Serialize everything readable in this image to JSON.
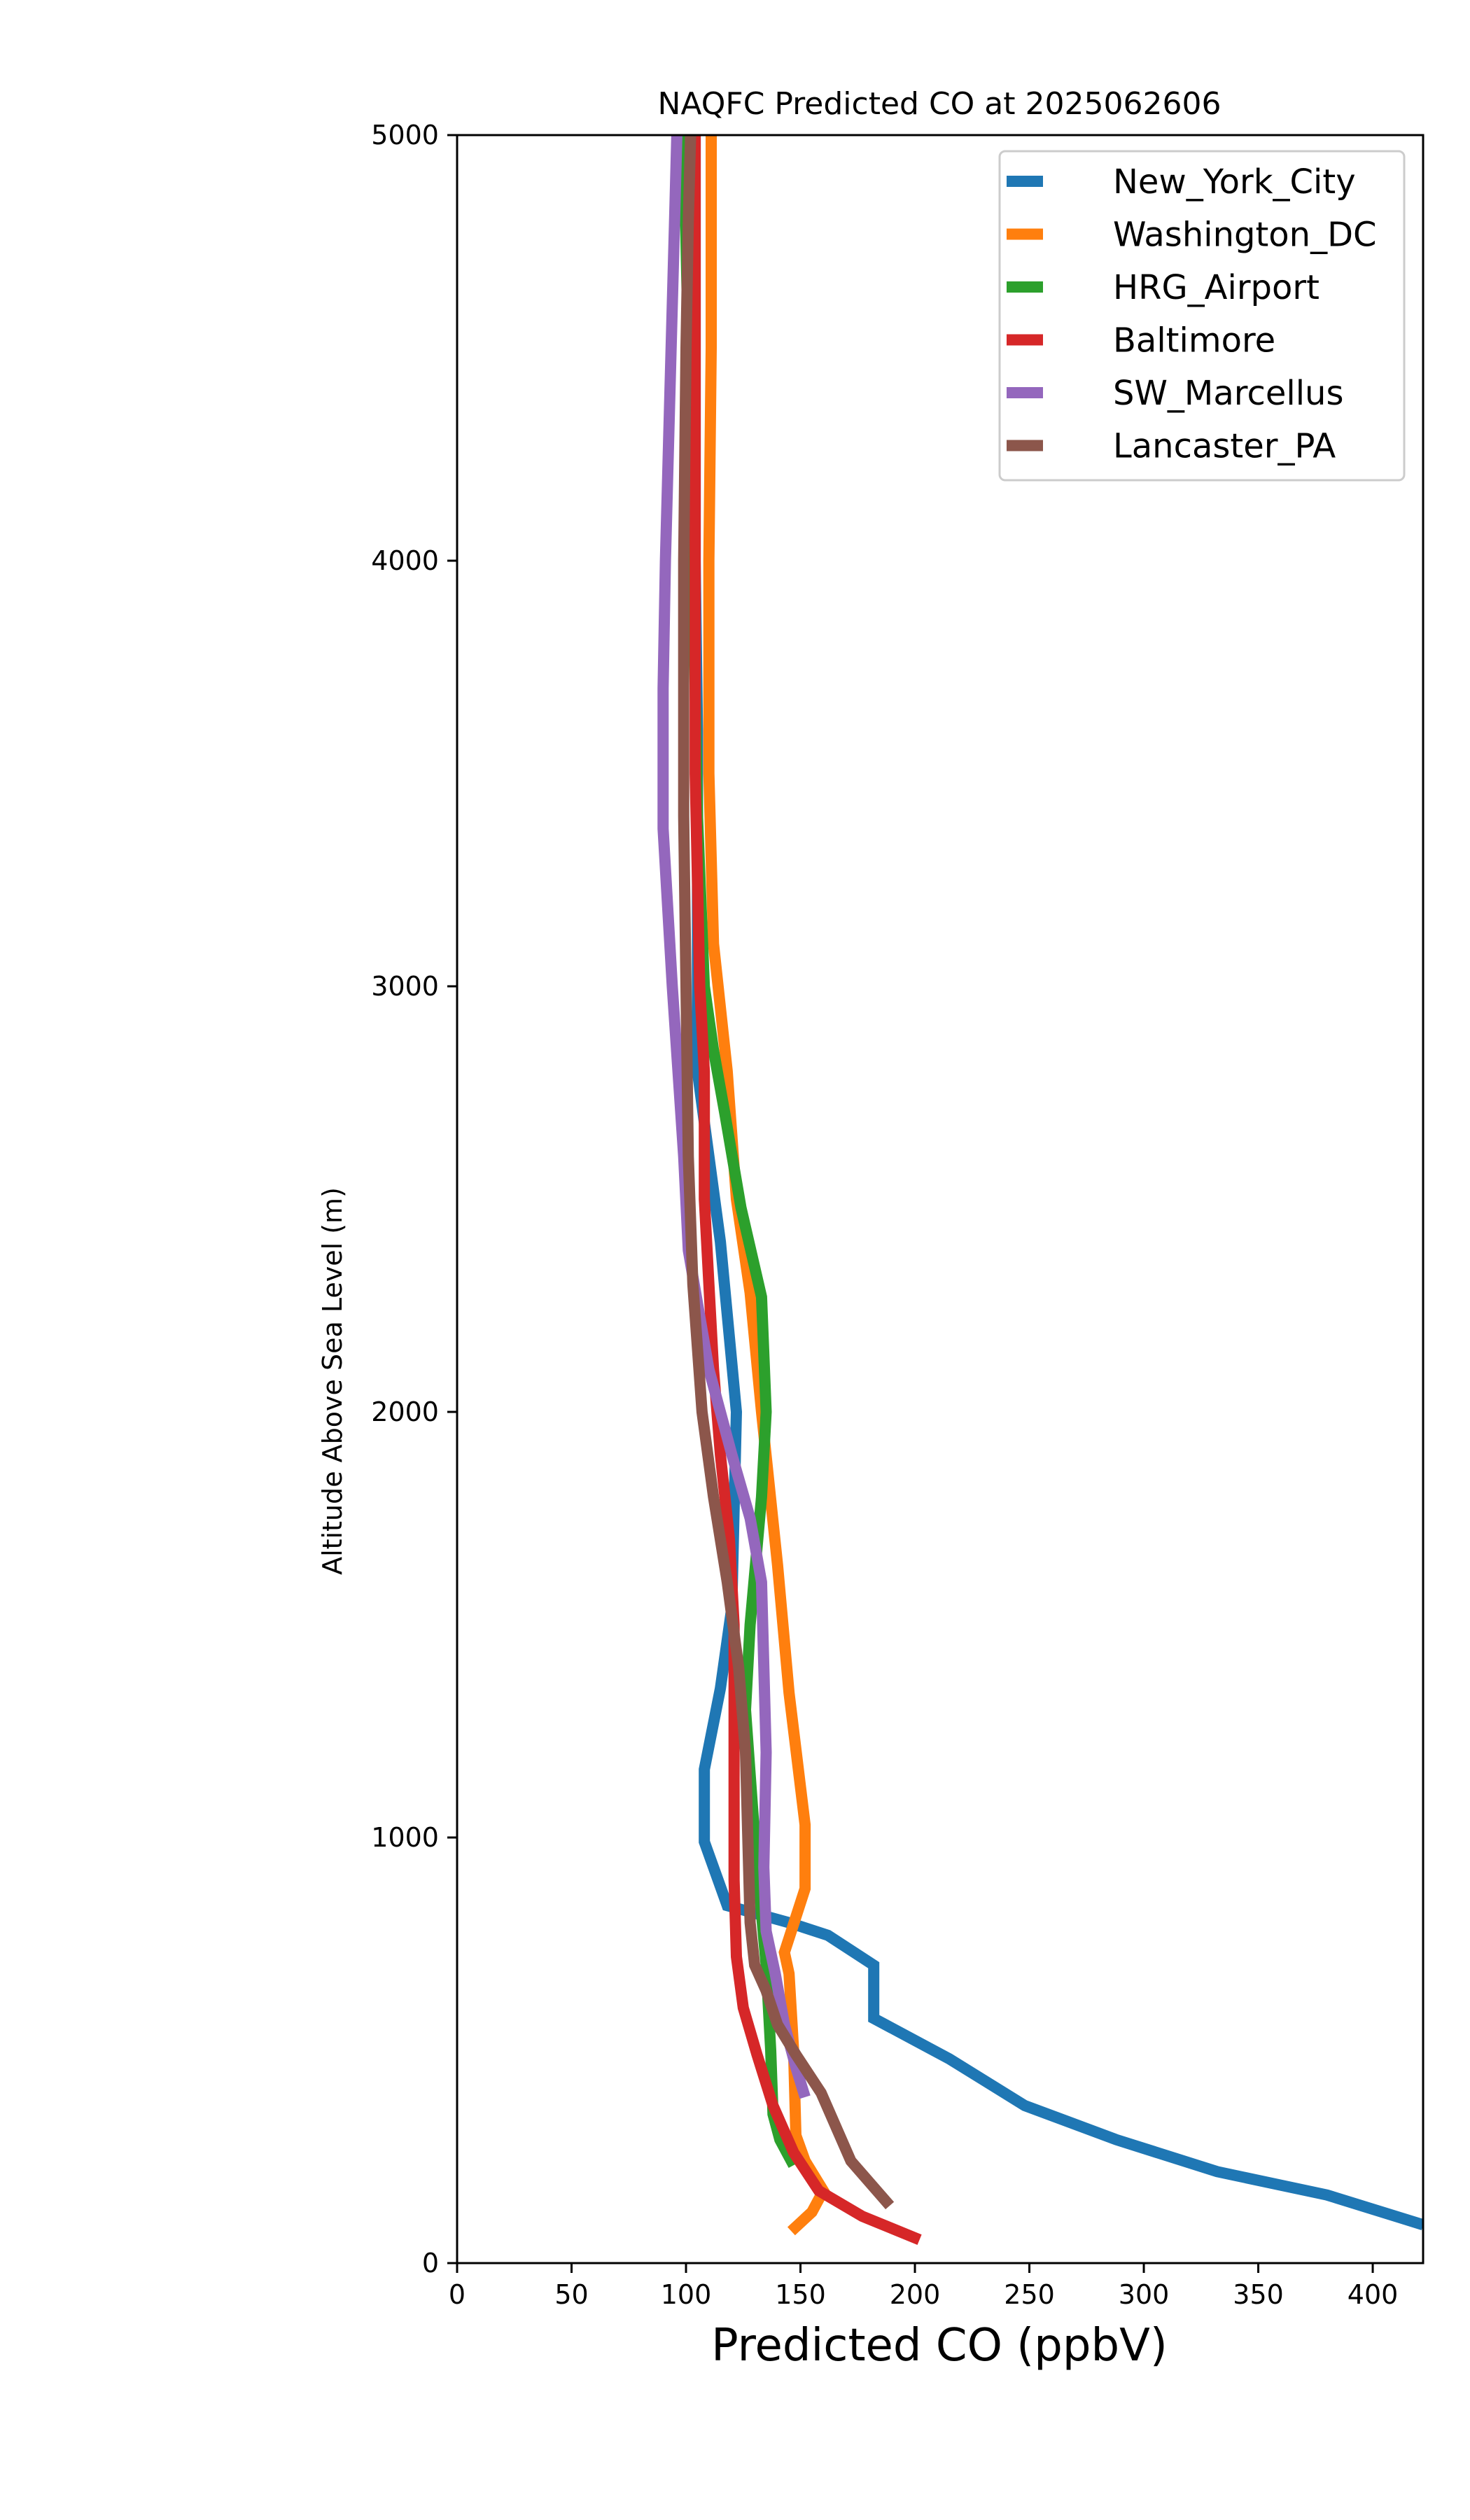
{
  "chart_data": {
    "type": "line",
    "title": "NAQFC Predicted CO at 2025062606",
    "xlabel": "Predicted CO (ppbV)",
    "ylabel": "Altitude Above Sea Level (m)",
    "xlim": [
      0,
      422
    ],
    "ylim": [
      0,
      5000
    ],
    "xticks": [
      "0",
      "50",
      "100",
      "150",
      "200",
      "250",
      "300",
      "350",
      "400"
    ],
    "yticks": [
      "0",
      "1000",
      "2000",
      "3000",
      "4000",
      "5000"
    ],
    "legend_position": "top-right",
    "grid": false,
    "series": [
      {
        "name": "New_York_City",
        "color": "#1f77b4",
        "points": [
          [
            422,
            90
          ],
          [
            380,
            160
          ],
          [
            332,
            215
          ],
          [
            288,
            290
          ],
          [
            248,
            370
          ],
          [
            215,
            480
          ],
          [
            182,
            575
          ],
          [
            182,
            700
          ],
          [
            162,
            770
          ],
          [
            145,
            800
          ],
          [
            118,
            840
          ],
          [
            108,
            990
          ],
          [
            108,
            1160
          ],
          [
            115,
            1350
          ],
          [
            120,
            1540
          ],
          [
            122,
            2000
          ],
          [
            115,
            2400
          ],
          [
            105,
            2800
          ],
          [
            105,
            3200
          ],
          [
            105,
            3600
          ],
          [
            104,
            4000
          ],
          [
            104,
            4400
          ],
          [
            104,
            4800
          ],
          [
            104,
            5000
          ]
        ]
      },
      {
        "name": "Washington_DC",
        "color": "#ff7f0e",
        "points": [
          [
            146,
            75
          ],
          [
            155,
            120
          ],
          [
            160,
            170
          ],
          [
            152,
            240
          ],
          [
            148,
            300
          ],
          [
            147,
            500
          ],
          [
            145,
            680
          ],
          [
            143,
            730
          ],
          [
            152,
            880
          ],
          [
            152,
            1030
          ],
          [
            145,
            1340
          ],
          [
            140,
            1640
          ],
          [
            133,
            2000
          ],
          [
            128,
            2280
          ],
          [
            122,
            2500
          ],
          [
            118,
            2800
          ],
          [
            112,
            3100
          ],
          [
            110,
            3500
          ],
          [
            110,
            4000
          ],
          [
            111,
            4500
          ],
          [
            111,
            5000
          ]
        ]
      },
      {
        "name": "HRG_Airport",
        "color": "#2ca02c",
        "points": [
          [
            147,
            230
          ],
          [
            141,
            290
          ],
          [
            138,
            350
          ],
          [
            137,
            500
          ],
          [
            135,
            700
          ],
          [
            130,
            1000
          ],
          [
            126,
            1300
          ],
          [
            128,
            1500
          ],
          [
            133,
            1800
          ],
          [
            135,
            2000
          ],
          [
            133,
            2270
          ],
          [
            124,
            2480
          ],
          [
            117,
            2700
          ],
          [
            112,
            2850
          ],
          [
            108,
            3000
          ],
          [
            105,
            3400
          ],
          [
            103,
            4000
          ],
          [
            101,
            4500
          ],
          [
            99,
            5000
          ]
        ]
      },
      {
        "name": "Baltimore",
        "color": "#d62728",
        "points": [
          [
            202,
            55
          ],
          [
            177,
            110
          ],
          [
            158,
            170
          ],
          [
            147,
            260
          ],
          [
            138,
            370
          ],
          [
            131,
            490
          ],
          [
            125,
            600
          ],
          [
            122,
            720
          ],
          [
            121,
            900
          ],
          [
            121,
            1100
          ],
          [
            121,
            1300
          ],
          [
            121,
            1500
          ],
          [
            119,
            1700
          ],
          [
            115,
            1900
          ],
          [
            112,
            2100
          ],
          [
            110,
            2300
          ],
          [
            108,
            2500
          ],
          [
            108,
            2800
          ],
          [
            106,
            3000
          ],
          [
            104,
            3500
          ],
          [
            104,
            4000
          ],
          [
            104,
            4500
          ],
          [
            104,
            5000
          ]
        ]
      },
      {
        "name": "SW_Marcellus",
        "color": "#9467bd",
        "points": [
          [
            152,
            390
          ],
          [
            148,
            460
          ],
          [
            143,
            560
          ],
          [
            139,
            680
          ],
          [
            135,
            780
          ],
          [
            134,
            930
          ],
          [
            135,
            1200
          ],
          [
            134,
            1400
          ],
          [
            133,
            1600
          ],
          [
            128,
            1750
          ],
          [
            120,
            1900
          ],
          [
            110,
            2100
          ],
          [
            101,
            2380
          ],
          [
            99,
            2600
          ],
          [
            94,
            3000
          ],
          [
            90,
            3370
          ],
          [
            90,
            3700
          ],
          [
            91,
            4000
          ],
          [
            93,
            4400
          ],
          [
            95,
            4800
          ],
          [
            96,
            5000
          ]
        ]
      },
      {
        "name": "Lancaster_PA",
        "color": "#8c564b",
        "points": [
          [
            189,
            135
          ],
          [
            172,
            240
          ],
          [
            159,
            400
          ],
          [
            148,
            490
          ],
          [
            140,
            560
          ],
          [
            135,
            640
          ],
          [
            130,
            700
          ],
          [
            128,
            800
          ],
          [
            127,
            1000
          ],
          [
            126,
            1200
          ],
          [
            123,
            1400
          ],
          [
            118,
            1600
          ],
          [
            112,
            1800
          ],
          [
            107,
            2000
          ],
          [
            103,
            2300
          ],
          [
            101,
            2600
          ],
          [
            100,
            3000
          ],
          [
            99,
            3400
          ],
          [
            99,
            4000
          ],
          [
            100,
            4500
          ],
          [
            101,
            4800
          ],
          [
            102,
            5000
          ]
        ]
      }
    ]
  }
}
